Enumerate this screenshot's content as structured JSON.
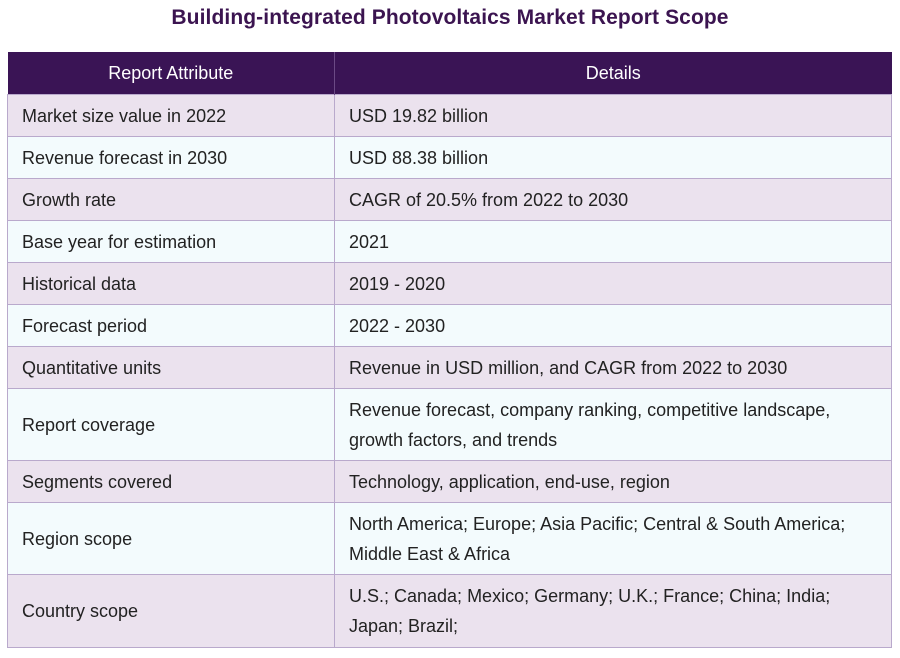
{
  "title": "Building-integrated Photovoltaics Market Report Scope",
  "table": {
    "headers": [
      "Report Attribute",
      "Details"
    ],
    "rows": [
      {
        "attribute": "Market size value in 2022",
        "details": "USD 19.82 billion"
      },
      {
        "attribute": "Revenue forecast in 2030",
        "details": "USD 88.38 billion"
      },
      {
        "attribute": "Growth rate",
        "details": "CAGR of 20.5% from 2022 to 2030"
      },
      {
        "attribute": "Base year for estimation",
        "details": "2021"
      },
      {
        "attribute": "Historical data",
        "details": "2019 - 2020"
      },
      {
        "attribute": "Forecast period",
        "details": "2022 - 2030"
      },
      {
        "attribute": "Quantitative units",
        "details": "Revenue in USD million, and CAGR from 2022 to 2030"
      },
      {
        "attribute": "Report coverage",
        "details": "Revenue forecast, company ranking, competitive landscape, growth factors, and trends"
      },
      {
        "attribute": "Segments covered",
        "details": "Technology, application, end-use, region"
      },
      {
        "attribute": "Region scope",
        "details": "North America; Europe; Asia Pacific; Central & South America; Middle East & Africa"
      },
      {
        "attribute": "Country scope",
        "details": "U.S.; Canada; Mexico; Germany; U.K.; France; China; India; Japan; Brazil;"
      }
    ]
  }
}
